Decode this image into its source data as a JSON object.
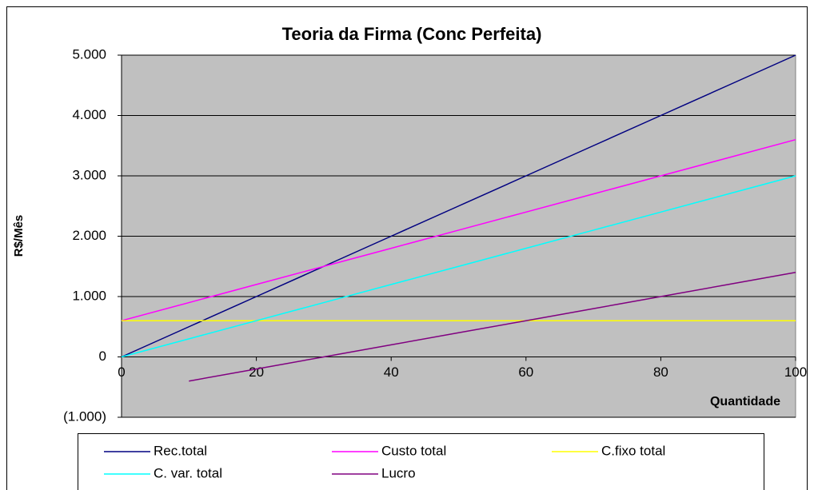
{
  "chart_data": {
    "type": "line",
    "title": "Teoria da Firma (Conc Perfeita)",
    "x_label": "Quantidade",
    "y_label": "R$/Mês",
    "x": [
      0,
      10,
      20,
      30,
      40,
      50,
      60,
      70,
      80,
      90,
      100
    ],
    "series": [
      {
        "name": "Rec.total",
        "color": "#000080",
        "values": [
          0,
          500,
          1000,
          1500,
          2000,
          2500,
          3000,
          3500,
          4000,
          4500,
          5000
        ]
      },
      {
        "name": "Custo total",
        "color": "#ff00ff",
        "values": [
          600,
          900,
          1200,
          1500,
          1800,
          2100,
          2400,
          2700,
          3000,
          3300,
          3600
        ]
      },
      {
        "name": "C.fixo total",
        "color": "#ffff00",
        "values": [
          600,
          600,
          600,
          600,
          600,
          600,
          600,
          600,
          600,
          600,
          600
        ]
      },
      {
        "name": "C. var. total",
        "color": "#00ffff",
        "values": [
          0,
          300,
          600,
          900,
          1200,
          1500,
          1800,
          2100,
          2400,
          2700,
          3000
        ]
      },
      {
        "name": "Lucro",
        "color": "#800080",
        "values": [
          null,
          -400,
          -200,
          0,
          200,
          400,
          600,
          800,
          1000,
          1200,
          1400
        ]
      }
    ],
    "xlim": [
      0,
      100
    ],
    "xticks": [
      0,
      20,
      40,
      60,
      80,
      100
    ],
    "ylim": [
      -1000,
      5000
    ],
    "yticks": [
      {
        "value": -1000,
        "label": "(1.000)"
      },
      0,
      {
        "value": 1000,
        "label": "1.000"
      },
      {
        "value": 2000,
        "label": "2.000"
      },
      {
        "value": 3000,
        "label": "3.000"
      },
      {
        "value": 4000,
        "label": "4.000"
      },
      {
        "value": 5000,
        "label": "5.000"
      }
    ],
    "grid": true,
    "legend": "bottom"
  }
}
